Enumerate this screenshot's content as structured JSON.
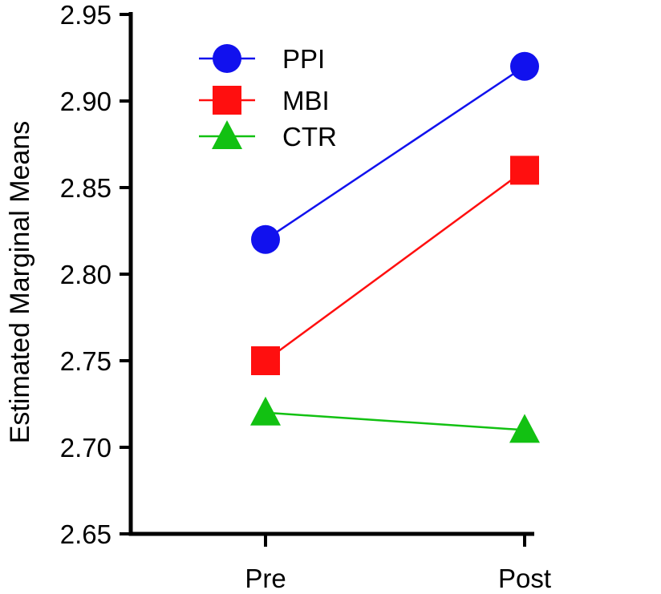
{
  "chart_data": {
    "type": "line",
    "categories": [
      "Pre",
      "Post"
    ],
    "series": [
      {
        "name": "PPI",
        "values": [
          2.82,
          2.92
        ],
        "color": "#1111ee",
        "marker": "circle"
      },
      {
        "name": "MBI",
        "values": [
          2.75,
          2.86
        ],
        "color": "#ff0f0f",
        "marker": "square"
      },
      {
        "name": "CTR",
        "values": [
          2.72,
          2.71
        ],
        "color": "#12c112",
        "marker": "triangle"
      }
    ],
    "title": "",
    "xlabel": "",
    "ylabel": "Estimated Marginal Means",
    "ylim": [
      2.65,
      2.95
    ],
    "yticks": [
      "2.65",
      "2.70",
      "2.75",
      "2.80",
      "2.85",
      "2.90",
      "2.95"
    ],
    "grid": false,
    "legend_position": "top-left"
  }
}
